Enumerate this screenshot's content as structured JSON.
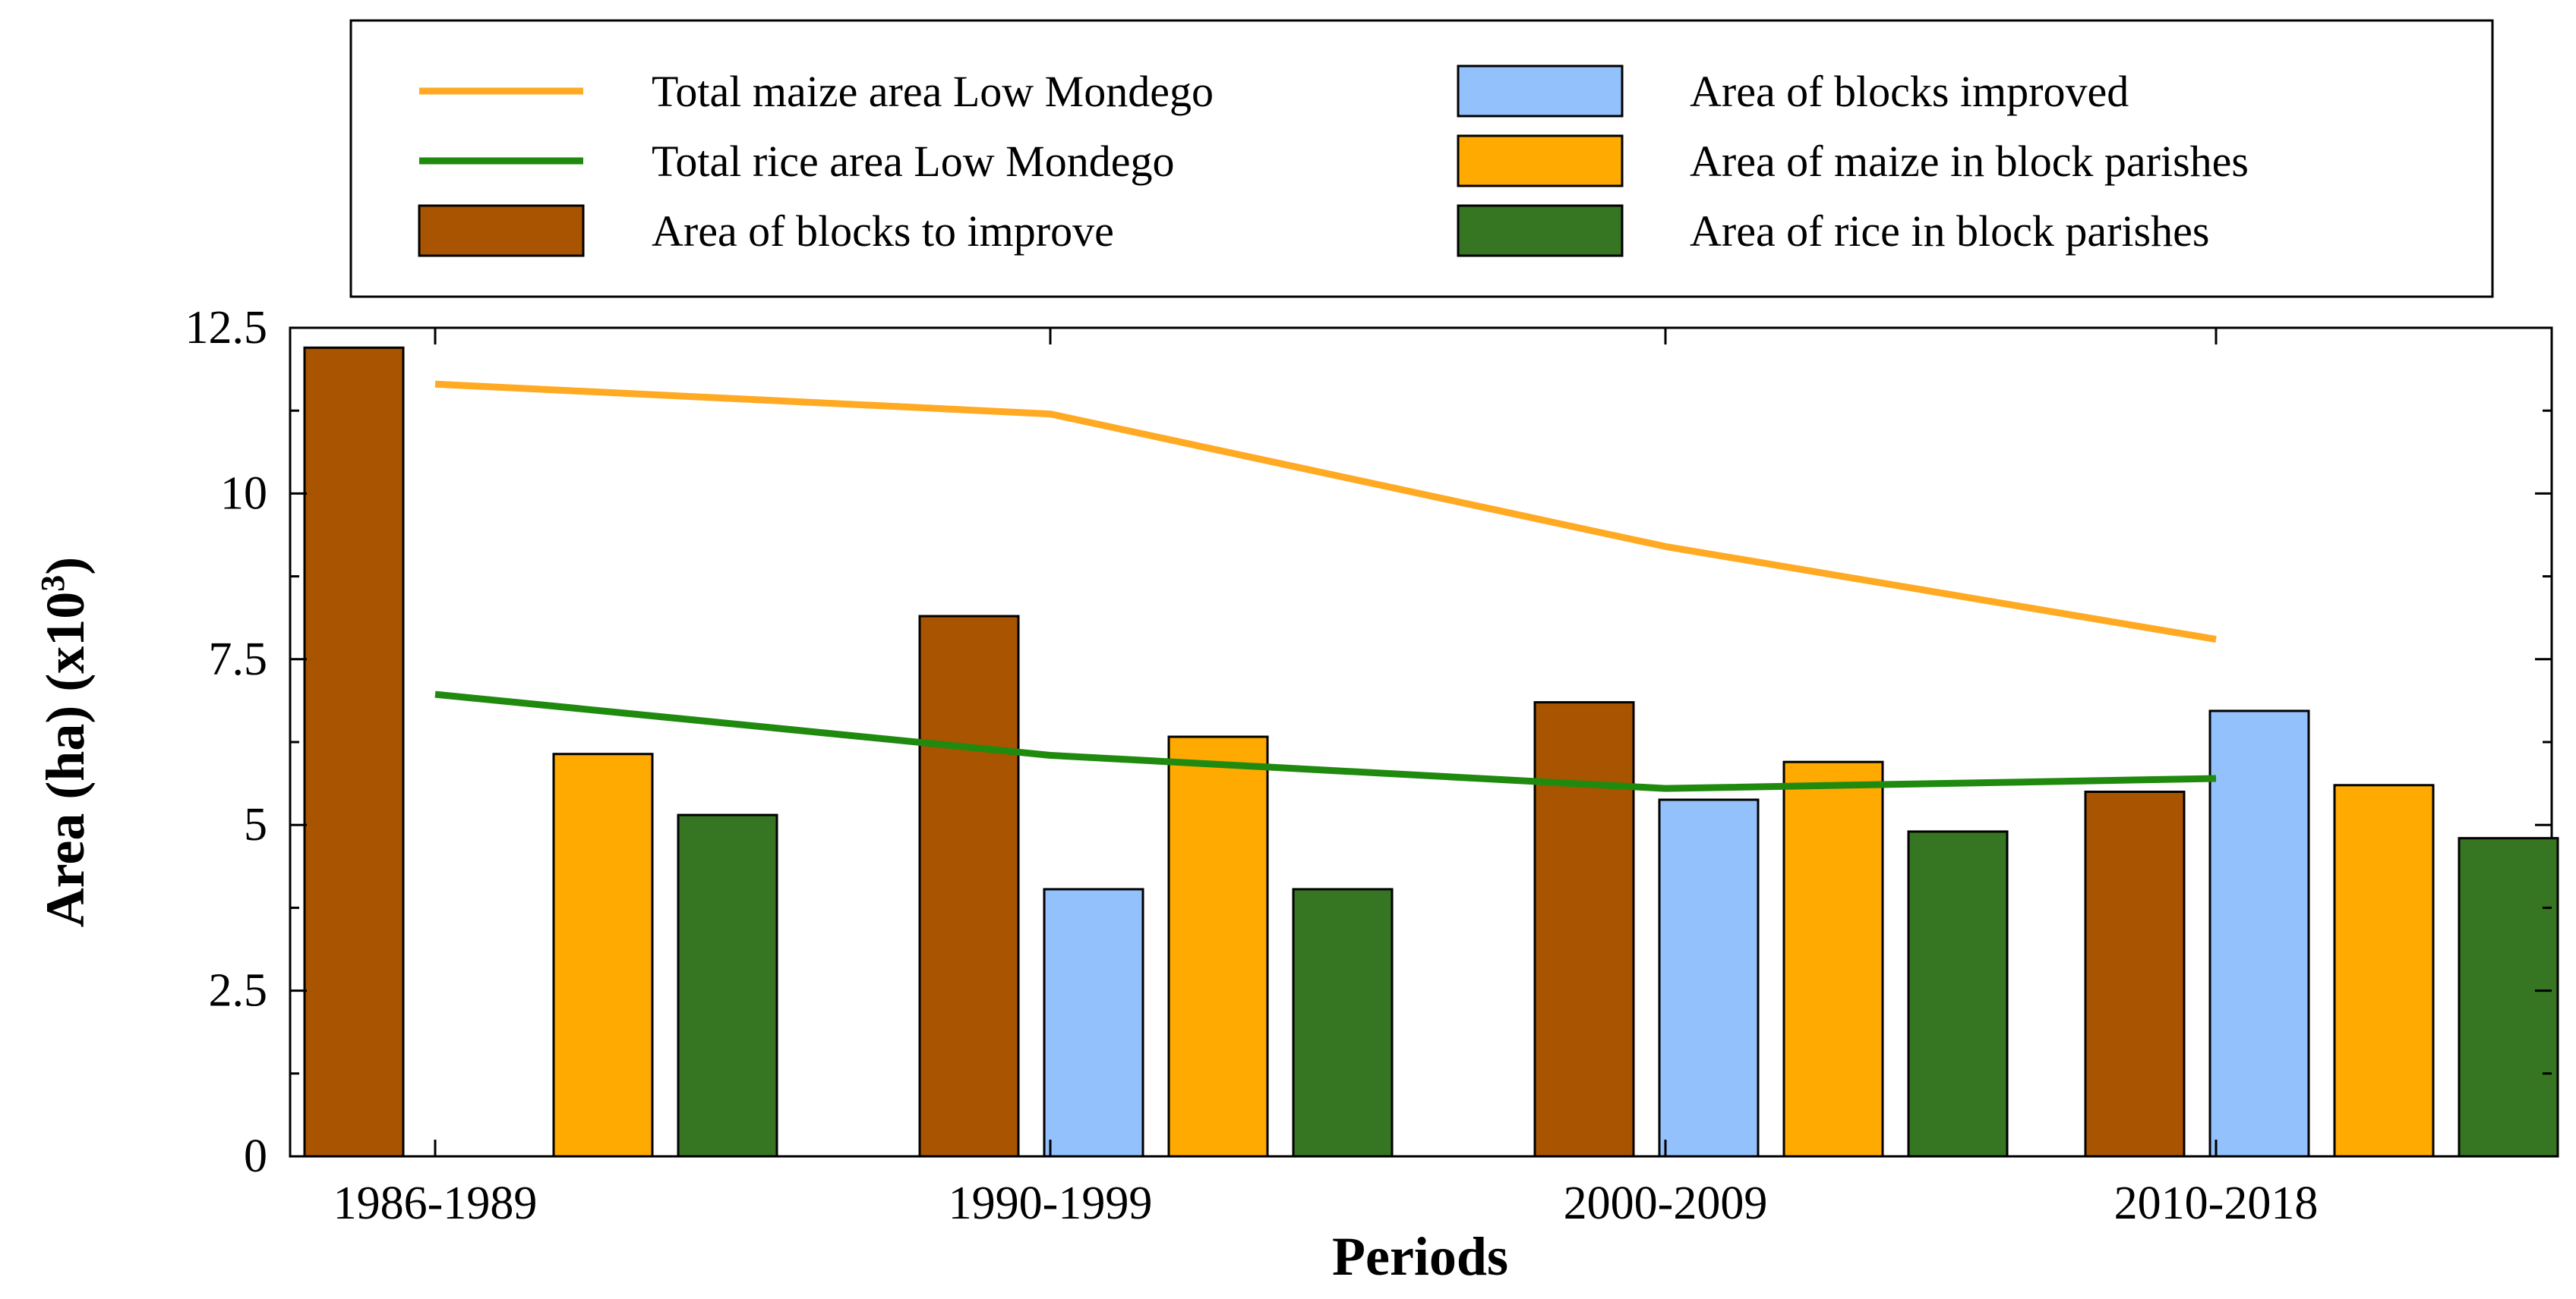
{
  "chart_data": {
    "type": "bar",
    "title": "",
    "xlabel": "Periods",
    "ylabel": "Area (ha) (x10",
    "ylabel_exponent": "3",
    "ylabel_close": ")",
    "categories": [
      "1986-1989",
      "1990-1999",
      "2000-2009",
      "2010-2018"
    ],
    "ylim": [
      0,
      12.5
    ],
    "yticks": [
      0,
      2.5,
      5,
      7.5,
      10,
      12.5
    ],
    "ytick_labels": [
      "0",
      "2.5",
      "5",
      "7.5",
      "10",
      "12.5"
    ],
    "grid": false,
    "legend_position": "top",
    "series": [
      {
        "name": "Area of blocks to improve",
        "kind": "bar",
        "color": "#a85400",
        "values": [
          12.2,
          8.15,
          6.85,
          5.5
        ]
      },
      {
        "name": "Area of blocks improved",
        "kind": "bar",
        "color": "#93c1fb",
        "values": [
          null,
          4.03,
          5.38,
          6.72
        ]
      },
      {
        "name": "Area of maize in block parishes",
        "kind": "bar",
        "color": "#ffaa00",
        "values": [
          6.07,
          6.33,
          5.95,
          5.6
        ]
      },
      {
        "name": "Area of rice in block parishes",
        "kind": "bar",
        "color": "#367521",
        "values": [
          5.15,
          4.03,
          4.9,
          4.8
        ]
      },
      {
        "name": "Total maize area Low Mondego",
        "kind": "line",
        "color": "#ffaa22",
        "values": [
          11.65,
          11.2,
          9.2,
          7.8
        ]
      },
      {
        "name": "Total rice area Low Mondego",
        "kind": "line",
        "color": "#1f8a0e",
        "values": [
          6.97,
          6.05,
          5.55,
          5.7
        ]
      }
    ],
    "legend_order": [
      4,
      1,
      5,
      2,
      0,
      3
    ]
  }
}
